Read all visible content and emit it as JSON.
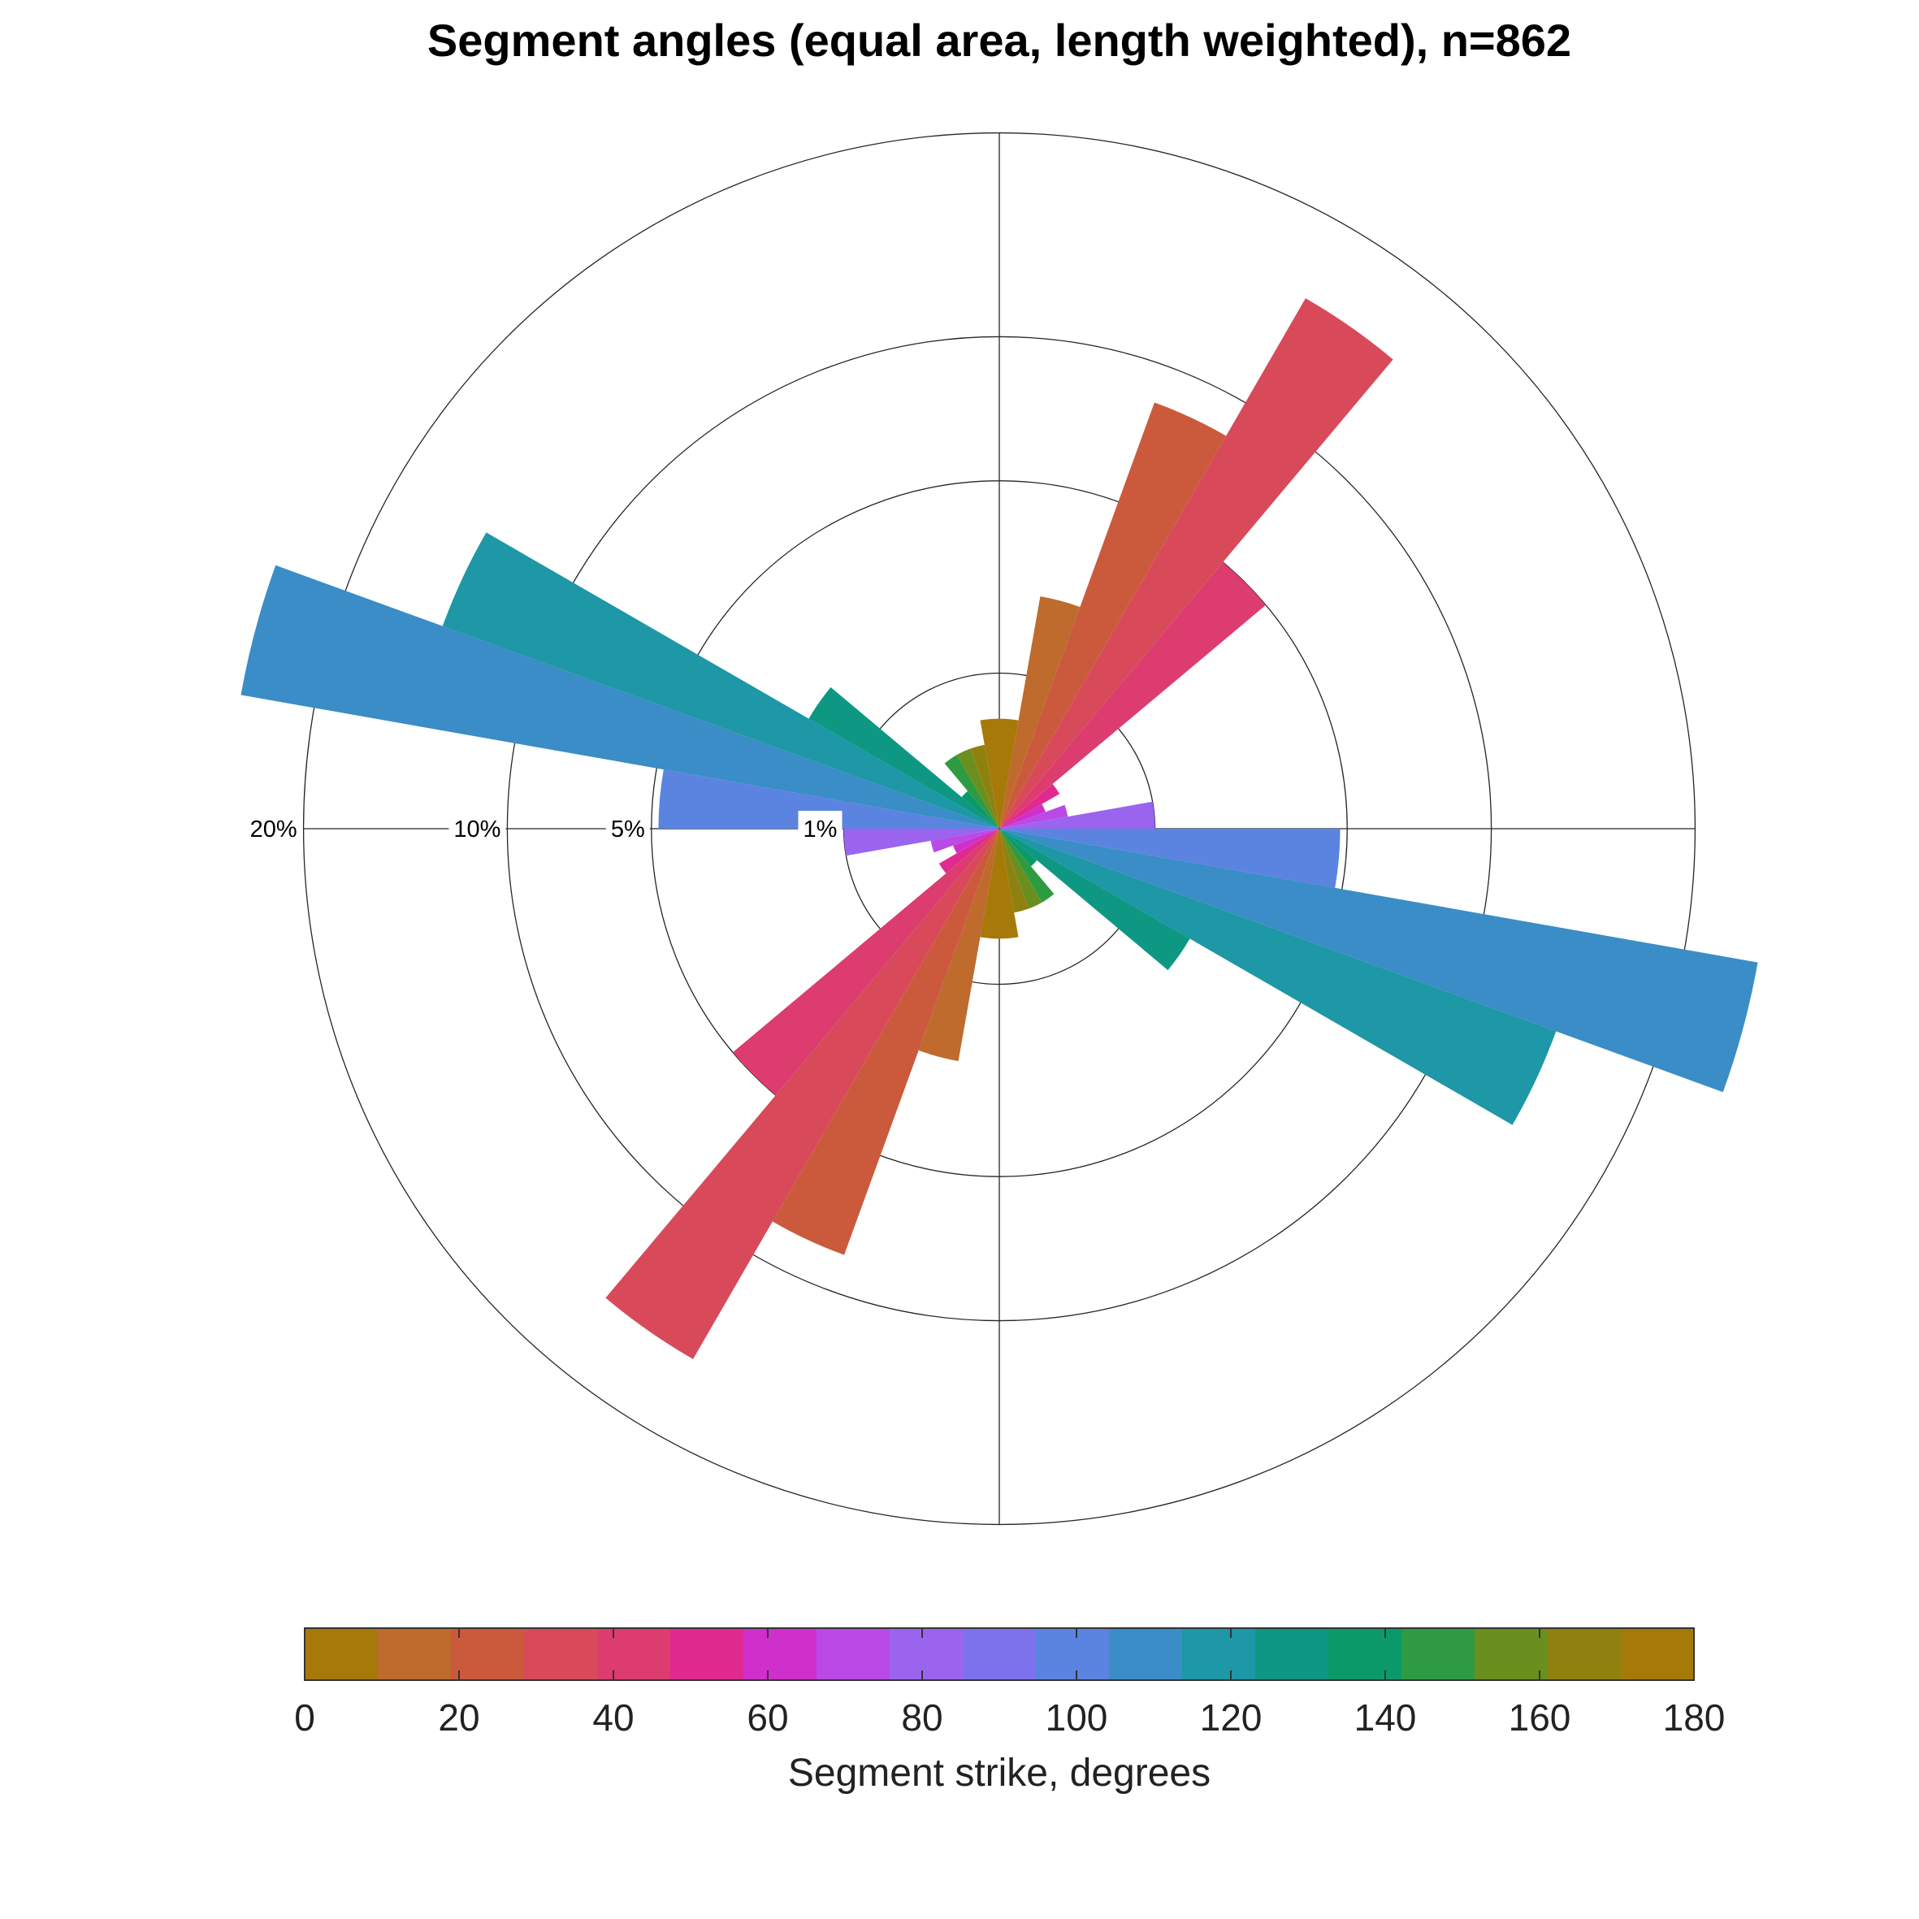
{
  "chart_data": {
    "type": "rose",
    "title": "Segment angles (equal area, length weighted), n=862",
    "radial_scale": "equal area",
    "bin_width_deg": 10,
    "bins_deg": [
      0,
      10,
      20,
      30,
      40,
      50,
      60,
      70,
      80,
      90,
      100,
      110,
      120,
      130,
      140,
      150,
      160,
      170
    ],
    "values_percent": [
      0.5,
      2.3,
      8.5,
      15.5,
      5.0,
      0.2,
      0.1,
      0.2,
      1.0,
      4.8,
      24.5,
      14.5,
      2.0,
      0.1,
      0.3,
      0.3,
      0.3,
      0.5
    ],
    "mirrored": true,
    "ring_labels": [
      "1%",
      "5%",
      "10%",
      "20%"
    ],
    "ring_values": [
      1,
      5,
      10,
      20
    ],
    "grid": true,
    "colorbar": {
      "label": "Segment strike, degrees",
      "tick_labels": [
        "0",
        "20",
        "40",
        "60",
        "80",
        "100",
        "120",
        "140",
        "160",
        "180"
      ],
      "range": [
        0,
        180
      ],
      "colors": [
        "#A6790A",
        "#BE6B2D",
        "#CB5A3C",
        "#D84A5A",
        "#DC3C6E",
        "#E02A90",
        "#CF2FCB",
        "#BA4AE6",
        "#9B64EF",
        "#7C73EC",
        "#5B84E0",
        "#3A8DC6",
        "#1E97A6",
        "#0E9883",
        "#0C996A",
        "#2E9B42",
        "#6B8F1E",
        "#8E8110",
        "#A67A09"
      ]
    }
  }
}
